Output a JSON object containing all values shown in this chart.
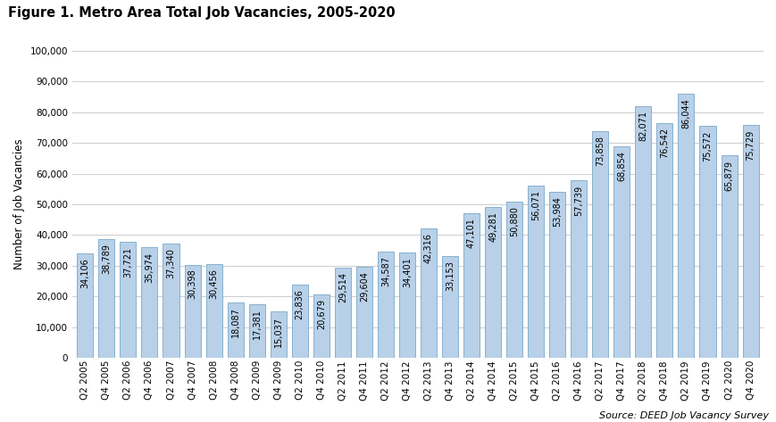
{
  "title": "Figure 1. Metro Area Total Job Vacancies, 2005-2020",
  "ylabel": "Number of Job Vacancies",
  "source": "Source: DEED Job Vacancy Survey",
  "categories": [
    "Q2 2005",
    "Q4 2005",
    "Q2 2006",
    "Q4 2006",
    "Q2 2007",
    "Q4 2007",
    "Q2 2008",
    "Q4 2008",
    "Q2 2009",
    "Q4 2009",
    "Q2 2010",
    "Q4 2010",
    "Q2 2011",
    "Q4 2011",
    "Q2 2012",
    "Q4 2012",
    "Q2 2013",
    "Q4 2013",
    "Q2 2014",
    "Q4 2014",
    "Q2 2015",
    "Q4 2015",
    "Q2 2016",
    "Q4 2016",
    "Q2 2017",
    "Q4 2017",
    "Q2 2018",
    "Q4 2018",
    "Q2 2019",
    "Q4 2019",
    "Q2 2020",
    "Q4 2020"
  ],
  "values": [
    34106,
    38789,
    37721,
    35974,
    37340,
    30398,
    30456,
    18087,
    17381,
    15037,
    23836,
    20679,
    29514,
    29604,
    34587,
    34401,
    42316,
    33153,
    47101,
    49281,
    50880,
    56071,
    53984,
    57739,
    73858,
    68854,
    82071,
    76542,
    86044,
    75572,
    65879,
    75729
  ],
  "bar_color": "#b8d0e8",
  "bar_edge_color": "#7aaac8",
  "ylim": [
    0,
    100000
  ],
  "yticks": [
    0,
    10000,
    20000,
    30000,
    40000,
    50000,
    60000,
    70000,
    80000,
    90000,
    100000
  ],
  "background_color": "#ffffff",
  "grid_color": "#cccccc",
  "title_fontsize": 10.5,
  "ylabel_fontsize": 8.5,
  "tick_fontsize": 7.5,
  "bar_label_fontsize": 7.0,
  "source_fontsize": 8.0
}
